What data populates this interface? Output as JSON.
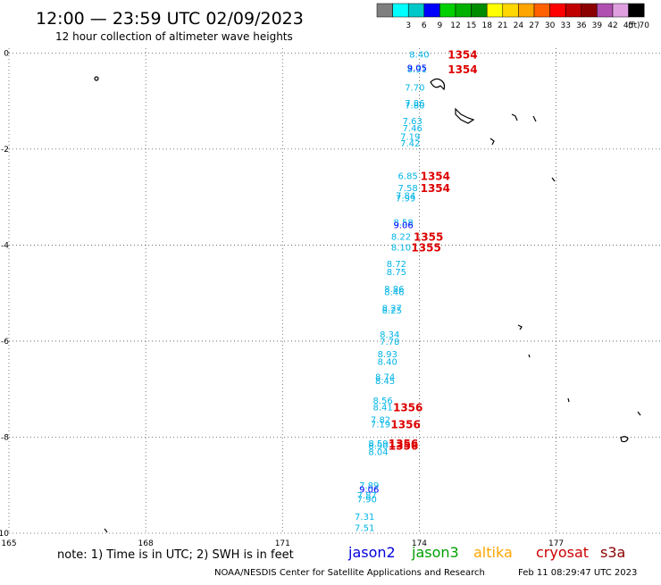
{
  "header": {
    "title": "12:00 — 23:59 UTC 02/09/2023",
    "subtitle": "12 hour collection of altimeter wave heights"
  },
  "legend": {
    "unit": "(ft)",
    "bins": [
      {
        "label": "",
        "color": "#7f7f7f"
      },
      {
        "label": "3",
        "color": "#00ffff"
      },
      {
        "label": "6",
        "color": "#00c8c8"
      },
      {
        "label": "9",
        "color": "#0000ff"
      },
      {
        "label": "12",
        "color": "#00d000"
      },
      {
        "label": "15",
        "color": "#00b000"
      },
      {
        "label": "18",
        "color": "#008c00"
      },
      {
        "label": "21",
        "color": "#ffff00"
      },
      {
        "label": "24",
        "color": "#ffd700"
      },
      {
        "label": "27",
        "color": "#ffa500"
      },
      {
        "label": "30",
        "color": "#ff6000"
      },
      {
        "label": "33",
        "color": "#ff0000"
      },
      {
        "label": "36",
        "color": "#c00000"
      },
      {
        "label": "39",
        "color": "#8b0000"
      },
      {
        "label": "42",
        "color": "#b050b0"
      },
      {
        "label": "45",
        "color": "#e0a0e0"
      },
      {
        "label": "70",
        "color": "#000000"
      }
    ]
  },
  "footer": {
    "note": "note: 1) Time is in UTC; 2) SWH is in feet",
    "satellites": [
      {
        "name": "jason2",
        "color": "#0000dd"
      },
      {
        "name": "jason3",
        "color": "#00a000"
      },
      {
        "name": "altika",
        "color": "#ffa500"
      },
      {
        "name": "cryosat",
        "color": "#cc0000"
      },
      {
        "name": "s3a",
        "color": "#8b0000"
      }
    ],
    "credit": "NOAA/NESDIS Center for Satellite Applications and Research",
    "timestamp": "Feb 11 08:29:47 UTC 2023"
  },
  "chart_data": {
    "type": "scatter",
    "x_ticks": [
      "165",
      "168",
      "171",
      "174",
      "177"
    ],
    "y_ticks": [
      "0",
      "-2",
      "-4",
      "-6",
      "-8",
      "-10"
    ],
    "xlim": [
      165,
      179.3
    ],
    "ylim": [
      -10,
      0.1
    ],
    "grid": true,
    "grid_style": "dotted",
    "wave_colors": {
      "swh_6_9": "#00b4e6",
      "swh_9_12": "#0000ff",
      "time": "#dd0000"
    },
    "swh_points": [
      {
        "lon": 174.0,
        "lat": -0.02,
        "text": "8.40",
        "color": "#00b4e6"
      },
      {
        "lon": 173.95,
        "lat": -0.33,
        "text": "8.31",
        "color": "#00b4e6"
      },
      {
        "lon": 173.95,
        "lat": -0.3,
        "text": "9.05",
        "color": "#0000ff"
      },
      {
        "lon": 173.9,
        "lat": -0.71,
        "text": "7.70",
        "color": "#00b4e6"
      },
      {
        "lon": 173.9,
        "lat": -1.03,
        "text": "7.86",
        "color": "#00b4e6"
      },
      {
        "lon": 173.9,
        "lat": -1.08,
        "text": "7.80",
        "color": "#00b4e6"
      },
      {
        "lon": 173.85,
        "lat": -1.41,
        "text": "7.63",
        "color": "#00b4e6"
      },
      {
        "lon": 173.85,
        "lat": -1.56,
        "text": "7.46",
        "color": "#00b4e6"
      },
      {
        "lon": 173.8,
        "lat": -1.73,
        "text": "7.19",
        "color": "#00b4e6"
      },
      {
        "lon": 173.8,
        "lat": -1.87,
        "text": "7.42",
        "color": "#00b4e6"
      },
      {
        "lon": 173.75,
        "lat": -2.55,
        "text": "6.85",
        "color": "#00b4e6"
      },
      {
        "lon": 173.75,
        "lat": -2.8,
        "text": "7.58",
        "color": "#00b4e6"
      },
      {
        "lon": 173.7,
        "lat": -2.96,
        "text": "7.84",
        "color": "#00b4e6"
      },
      {
        "lon": 173.7,
        "lat": -3.02,
        "text": "7.99",
        "color": "#00b4e6"
      },
      {
        "lon": 173.65,
        "lat": -3.52,
        "text": "8.58",
        "color": "#00b4e6"
      },
      {
        "lon": 173.65,
        "lat": -3.57,
        "text": "9.06",
        "color": "#0000ff"
      },
      {
        "lon": 173.6,
        "lat": -3.82,
        "text": "8.22",
        "color": "#00b4e6"
      },
      {
        "lon": 173.6,
        "lat": -4.04,
        "text": "8.10",
        "color": "#00b4e6"
      },
      {
        "lon": 173.5,
        "lat": -4.38,
        "text": "8.72",
        "color": "#00b4e6"
      },
      {
        "lon": 173.5,
        "lat": -4.55,
        "text": "8.75",
        "color": "#00b4e6"
      },
      {
        "lon": 173.45,
        "lat": -4.9,
        "text": "8.86",
        "color": "#00b4e6"
      },
      {
        "lon": 173.45,
        "lat": -4.97,
        "text": "8.46",
        "color": "#00b4e6"
      },
      {
        "lon": 173.4,
        "lat": -5.3,
        "text": "8.27",
        "color": "#00b4e6"
      },
      {
        "lon": 173.4,
        "lat": -5.35,
        "text": "8.25",
        "color": "#00b4e6"
      },
      {
        "lon": 173.35,
        "lat": -5.85,
        "text": "8.34",
        "color": "#00b4e6"
      },
      {
        "lon": 173.35,
        "lat": -6.0,
        "text": "7.78",
        "color": "#00b4e6"
      },
      {
        "lon": 173.3,
        "lat": -6.26,
        "text": "8.93",
        "color": "#00b4e6"
      },
      {
        "lon": 173.3,
        "lat": -6.42,
        "text": "8.40",
        "color": "#00b4e6"
      },
      {
        "lon": 173.25,
        "lat": -6.74,
        "text": "8.74",
        "color": "#00b4e6"
      },
      {
        "lon": 173.25,
        "lat": -6.82,
        "text": "8.45",
        "color": "#00b4e6"
      },
      {
        "lon": 173.2,
        "lat": -7.23,
        "text": "8.56",
        "color": "#00b4e6"
      },
      {
        "lon": 173.2,
        "lat": -7.37,
        "text": "8.41",
        "color": "#00b4e6"
      },
      {
        "lon": 173.15,
        "lat": -7.63,
        "text": "7.82",
        "color": "#00b4e6"
      },
      {
        "lon": 173.15,
        "lat": -7.72,
        "text": "7.19",
        "color": "#00b4e6"
      },
      {
        "lon": 173.1,
        "lat": -8.12,
        "text": "8.59",
        "color": "#00b4e6"
      },
      {
        "lon": 173.1,
        "lat": -8.17,
        "text": "8.90",
        "color": "#00b4e6"
      },
      {
        "lon": 173.1,
        "lat": -8.3,
        "text": "8.04",
        "color": "#00b4e6"
      },
      {
        "lon": 172.9,
        "lat": -9.0,
        "text": "7.89",
        "color": "#00b4e6"
      },
      {
        "lon": 172.9,
        "lat": -9.08,
        "text": "9.06",
        "color": "#0000ff"
      },
      {
        "lon": 172.85,
        "lat": -9.2,
        "text": "7.87",
        "color": "#00b4e6"
      },
      {
        "lon": 172.85,
        "lat": -9.28,
        "text": "7.90",
        "color": "#00b4e6"
      },
      {
        "lon": 172.8,
        "lat": -9.65,
        "text": "7.31",
        "color": "#00b4e6"
      },
      {
        "lon": 172.8,
        "lat": -9.88,
        "text": "7.51",
        "color": "#00b4e6"
      }
    ],
    "time_labels": [
      {
        "lon": 174.95,
        "lat": -0.02,
        "text": "1354"
      },
      {
        "lon": 174.95,
        "lat": -0.33,
        "text": "1354"
      },
      {
        "lon": 174.35,
        "lat": -2.55,
        "text": "1354"
      },
      {
        "lon": 174.35,
        "lat": -2.8,
        "text": "1354"
      },
      {
        "lon": 174.2,
        "lat": -3.82,
        "text": "1355"
      },
      {
        "lon": 174.15,
        "lat": -4.04,
        "text": "1355"
      },
      {
        "lon": 173.75,
        "lat": -7.37,
        "text": "1356"
      },
      {
        "lon": 173.7,
        "lat": -7.72,
        "text": "1356"
      },
      {
        "lon": 173.65,
        "lat": -8.12,
        "text": "1356"
      },
      {
        "lon": 173.65,
        "lat": -8.17,
        "text": "1356"
      }
    ]
  }
}
